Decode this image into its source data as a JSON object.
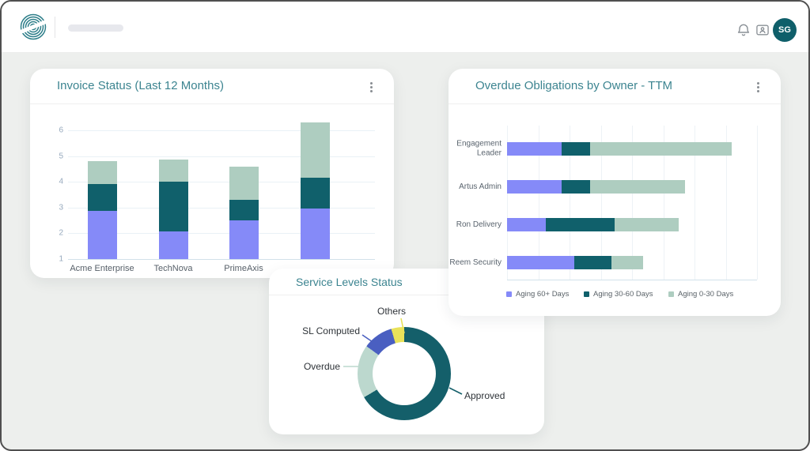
{
  "topbar": {
    "logo_icon": "brand-swirl-logo",
    "bell_icon": "bell-icon",
    "contact_icon": "contact-screen-icon",
    "avatar_initials": "SG"
  },
  "cards": {
    "invoice_status": {
      "title": "Invoice Status (Last 12 Months)",
      "menu_icon": "kebab-menu-icon",
      "chart_data": {
        "type": "bar",
        "stacked": true,
        "orientation": "vertical",
        "categories": [
          "Acme Enterprise",
          "TechNova",
          "PrimeAxis",
          ""
        ],
        "series": [
          {
            "name": "segment-purple",
            "color": "#858AF8",
            "values": [
              1.85,
              1.05,
              1.5,
              1.95
            ]
          },
          {
            "name": "segment-teal",
            "color": "#10606B",
            "values": [
              1.05,
              1.95,
              0.8,
              1.2
            ]
          },
          {
            "name": "segment-sage",
            "color": "#AECDC0",
            "values": [
              0.9,
              0.85,
              1.3,
              2.15
            ]
          }
        ],
        "baseline": 1,
        "yticks": [
          1,
          2,
          3,
          4,
          5,
          6
        ],
        "ylim": [
          1,
          6.6
        ],
        "grid": true
      }
    },
    "overdue_obligations": {
      "title": "Overdue Obligations by Owner - TTM",
      "menu_icon": "kebab-menu-icon",
      "chart_data": {
        "type": "bar",
        "stacked": true,
        "orientation": "horizontal",
        "categories": [
          "Engagement Leader",
          "Artus Admin",
          "Ron Delivery",
          "Reem Security"
        ],
        "series": [
          {
            "name": "Aging 60+ Days",
            "color": "#858AF8",
            "values": [
              1.75,
              1.75,
              1.25,
              2.15
            ]
          },
          {
            "name": "Aging 30-60 Days",
            "color": "#10606B",
            "values": [
              0.9,
              0.9,
              2.2,
              1.2
            ]
          },
          {
            "name": "Aging 0-30 Days",
            "color": "#AECDC0",
            "values": [
              4.55,
              3.05,
              2.05,
              1.0
            ]
          }
        ],
        "xlim": [
          0,
          8.25
        ],
        "grid": true,
        "legend_position": "bottom"
      }
    },
    "service_levels": {
      "title": "Service Levels Status",
      "chart_data": {
        "type": "pie",
        "donut": true,
        "labels": [
          "Approved",
          "Overdue",
          "SL Computed",
          "Others"
        ],
        "values_pct": [
          66.5,
          18.5,
          10.5,
          4.5
        ],
        "colors": [
          "#145F6A",
          "#BCD8CE",
          "#4A5FC1",
          "#E9E25A"
        ]
      }
    }
  },
  "colors": {
    "title_teal": "#3C8490",
    "avatar_bg": "#0F5F6A",
    "background": "#EDEFED"
  }
}
